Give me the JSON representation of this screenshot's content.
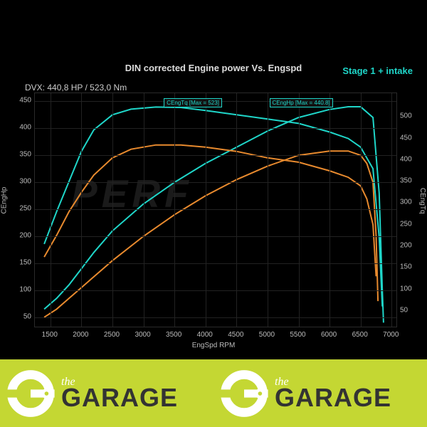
{
  "title": "DIN corrected Engine power Vs. Engspd",
  "stage_label": "Stage 1 + intake",
  "dvx_label": "DVX:  440,8 HP / 523,0 Nm",
  "axis": {
    "x_label": "EngSpd RPM",
    "y_left_label": "CEngHp",
    "y_right_label": "CEngTq",
    "x_ticks": [
      1500,
      2000,
      2500,
      3000,
      3500,
      4000,
      4500,
      5000,
      5500,
      6000,
      6500,
      7000
    ],
    "y_left_ticks": [
      50,
      100,
      150,
      200,
      250,
      300,
      350,
      400,
      450
    ],
    "y_right_ticks": [
      50,
      100,
      150,
      200,
      250,
      300,
      350,
      400,
      450,
      500
    ],
    "x_min": 1250,
    "x_max": 7100,
    "y_left_min": 30,
    "y_left_max": 465,
    "y_right_min": 10,
    "y_right_max": 555
  },
  "callouts": {
    "tq": {
      "text": "CEngTq [Max = 523]",
      "rpm": 3800
    },
    "hp": {
      "text": "CEngHp [Max = 440.8]",
      "rpm": 5500
    }
  },
  "colors": {
    "bg": "#000000",
    "grid": "#222222",
    "text": "#bbbbbb",
    "tuned": "#1fd6c9",
    "stock": "#e88a2e",
    "footer_bg": "#c4d733",
    "footer_text": "#333333"
  },
  "series": {
    "tuned_hp": {
      "color": "#1fd6c9",
      "width": 2,
      "axis": "left",
      "points": [
        [
          1400,
          65
        ],
        [
          1600,
          85
        ],
        [
          1800,
          110
        ],
        [
          2000,
          140
        ],
        [
          2200,
          170
        ],
        [
          2500,
          210
        ],
        [
          3000,
          260
        ],
        [
          3500,
          300
        ],
        [
          4000,
          335
        ],
        [
          4500,
          365
        ],
        [
          5000,
          395
        ],
        [
          5500,
          420
        ],
        [
          6000,
          435
        ],
        [
          6300,
          440
        ],
        [
          6500,
          440
        ],
        [
          6700,
          420
        ],
        [
          6800,
          280
        ],
        [
          6850,
          100
        ],
        [
          6870,
          40
        ]
      ]
    },
    "stock_hp": {
      "color": "#e88a2e",
      "width": 2,
      "axis": "left",
      "points": [
        [
          1400,
          50
        ],
        [
          1600,
          65
        ],
        [
          1800,
          85
        ],
        [
          2000,
          105
        ],
        [
          2200,
          125
        ],
        [
          2500,
          155
        ],
        [
          3000,
          200
        ],
        [
          3500,
          240
        ],
        [
          4000,
          275
        ],
        [
          4500,
          305
        ],
        [
          5000,
          330
        ],
        [
          5500,
          350
        ],
        [
          6000,
          358
        ],
        [
          6300,
          358
        ],
        [
          6500,
          350
        ],
        [
          6600,
          335
        ],
        [
          6700,
          300
        ],
        [
          6750,
          200
        ],
        [
          6780,
          80
        ]
      ]
    },
    "tuned_tq": {
      "color": "#1fd6c9",
      "width": 2,
      "axis": "right",
      "points": [
        [
          1400,
          205
        ],
        [
          1600,
          280
        ],
        [
          1800,
          350
        ],
        [
          2000,
          420
        ],
        [
          2200,
          470
        ],
        [
          2500,
          505
        ],
        [
          2800,
          518
        ],
        [
          3200,
          523
        ],
        [
          3600,
          522
        ],
        [
          4000,
          515
        ],
        [
          4500,
          505
        ],
        [
          5000,
          495
        ],
        [
          5500,
          485
        ],
        [
          6000,
          465
        ],
        [
          6300,
          450
        ],
        [
          6500,
          430
        ],
        [
          6700,
          380
        ],
        [
          6800,
          220
        ],
        [
          6850,
          60
        ]
      ]
    },
    "stock_tq": {
      "color": "#e88a2e",
      "width": 2,
      "axis": "right",
      "points": [
        [
          1400,
          175
        ],
        [
          1600,
          225
        ],
        [
          1800,
          280
        ],
        [
          2000,
          325
        ],
        [
          2200,
          365
        ],
        [
          2500,
          405
        ],
        [
          2800,
          425
        ],
        [
          3200,
          435
        ],
        [
          3600,
          435
        ],
        [
          4000,
          430
        ],
        [
          4500,
          420
        ],
        [
          5000,
          405
        ],
        [
          5500,
          395
        ],
        [
          6000,
          375
        ],
        [
          6300,
          360
        ],
        [
          6500,
          340
        ],
        [
          6600,
          310
        ],
        [
          6700,
          250
        ],
        [
          6750,
          130
        ]
      ]
    }
  },
  "footer": {
    "the": "the",
    "garage": "GARAGE"
  }
}
